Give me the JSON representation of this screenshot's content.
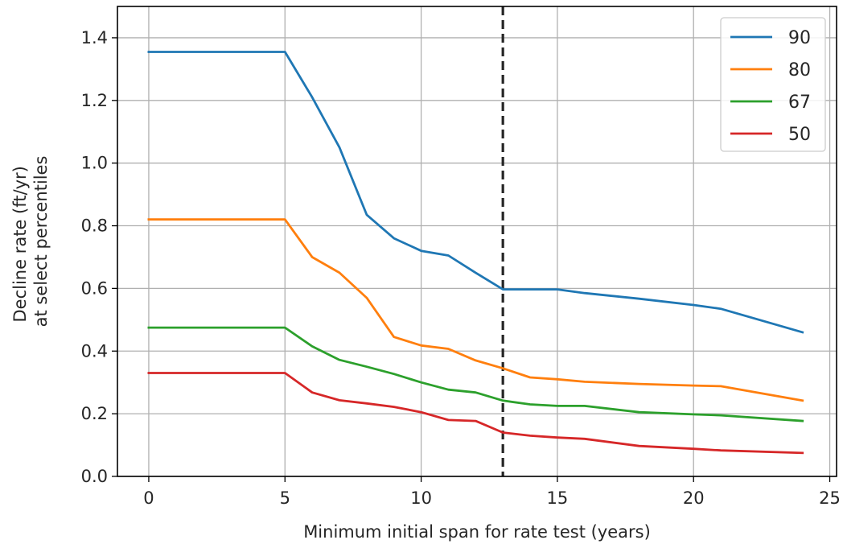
{
  "chart_data": {
    "type": "line",
    "xlabel": "Minimum initial span for rate test (years)",
    "ylabel_lines": [
      "Decline rate (ft/yr)",
      "at select percentiles"
    ],
    "xlim": [
      -1.15,
      25.25
    ],
    "ylim": [
      0,
      1.5
    ],
    "xticks": [
      0,
      5,
      10,
      15,
      20,
      25
    ],
    "yticks": [
      0.0,
      0.2,
      0.4,
      0.6,
      0.8,
      1.0,
      1.2,
      1.4
    ],
    "ytick_labels": [
      "0.0",
      "0.2",
      "0.4",
      "0.6",
      "0.8",
      "1.0",
      "1.2",
      "1.4"
    ],
    "grid": true,
    "legend_position": "upper right",
    "vline": {
      "x": 13,
      "style": "dashed",
      "color": "#262626"
    },
    "x": [
      0,
      5,
      6,
      7,
      8,
      9,
      10,
      11,
      12,
      13,
      14,
      15,
      16,
      18,
      20,
      21,
      24
    ],
    "series": [
      {
        "name": "90",
        "color": "#1f77b4",
        "values": [
          1.355,
          1.355,
          1.21,
          1.05,
          0.835,
          0.76,
          0.72,
          0.705,
          0.65,
          0.597,
          0.597,
          0.597,
          0.585,
          0.567,
          0.547,
          0.535,
          0.46
        ]
      },
      {
        "name": "80",
        "color": "#ff7f0e",
        "values": [
          0.82,
          0.82,
          0.7,
          0.65,
          0.57,
          0.445,
          0.418,
          0.407,
          0.37,
          0.345,
          0.316,
          0.31,
          0.302,
          0.295,
          0.29,
          0.288,
          0.242
        ]
      },
      {
        "name": "67",
        "color": "#2ca02c",
        "values": [
          0.475,
          0.475,
          0.415,
          0.372,
          0.35,
          0.327,
          0.3,
          0.277,
          0.268,
          0.242,
          0.23,
          0.225,
          0.225,
          0.205,
          0.198,
          0.195,
          0.177
        ]
      },
      {
        "name": "50",
        "color": "#d62728",
        "values": [
          0.33,
          0.33,
          0.268,
          0.243,
          0.233,
          0.222,
          0.205,
          0.18,
          0.177,
          0.14,
          0.13,
          0.124,
          0.12,
          0.097,
          0.088,
          0.083,
          0.075
        ]
      }
    ]
  }
}
